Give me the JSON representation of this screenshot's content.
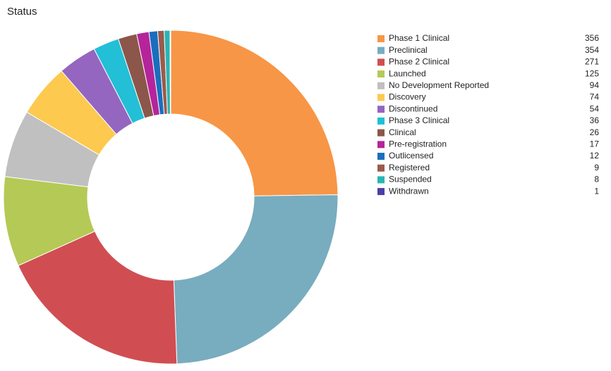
{
  "chart_data": {
    "type": "donut",
    "title": "Status",
    "categories": [
      "Phase 1 Clinical",
      "Preclinical",
      "Phase 2 Clinical",
      "Launched",
      "No Development Reported",
      "Discovery",
      "Discontinued",
      "Phase 3 Clinical",
      "Clinical",
      "Pre-registration",
      "Outlicensed",
      "Registered",
      "Suspended",
      "Withdrawn"
    ],
    "values": [
      356,
      354,
      271,
      125,
      94,
      74,
      54,
      36,
      26,
      17,
      12,
      9,
      8,
      1
    ],
    "colors": [
      "#f79646",
      "#78acbf",
      "#d04e52",
      "#b5c956",
      "#c0c0c0",
      "#fdc94f",
      "#9466c0",
      "#22bfd6",
      "#8c564b",
      "#b5249b",
      "#1a6ebd",
      "#9a5b4a",
      "#2ab5b5",
      "#4a3ea8"
    ],
    "legend": "right"
  }
}
